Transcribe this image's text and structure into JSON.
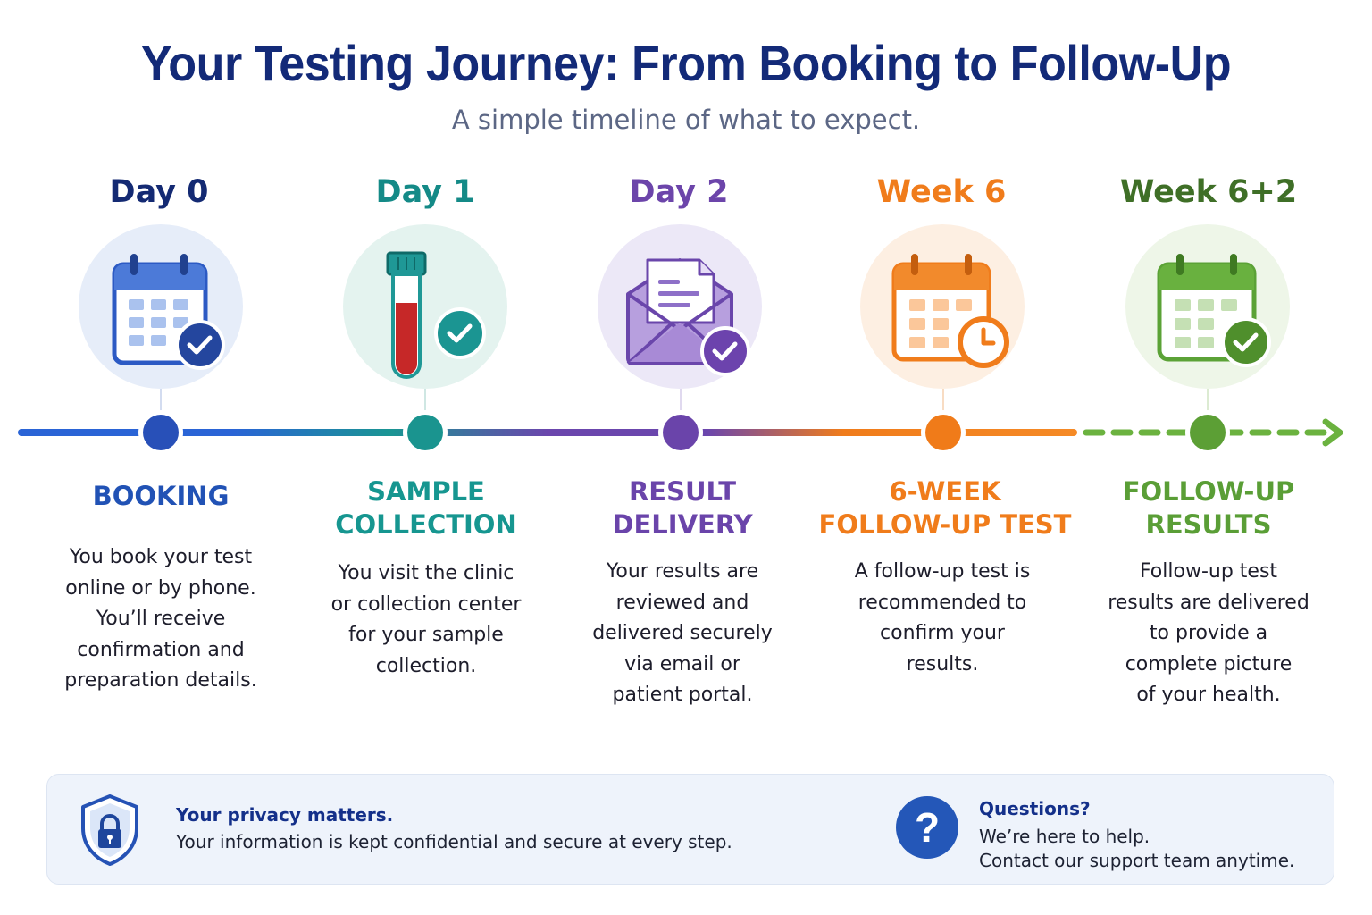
{
  "header": {
    "title": "Your Testing Journey: From Booking to Follow-Up",
    "subtitle": "A simple timeline of what to expect."
  },
  "colors": {
    "blue": "#2656bf",
    "teal": "#159294",
    "purple": "#6c45aa",
    "orange": "#f07c1b",
    "green": "#5a9e36"
  },
  "stages": [
    {
      "day": "Day 0",
      "name_lines": [
        "BOOKING"
      ],
      "desc_lines": [
        "You book your test",
        "online or by phone.",
        "You’ll receive",
        "confirmation and",
        "preparation details."
      ],
      "icon": "calendar-check-icon"
    },
    {
      "day": "Day 1",
      "name_lines": [
        "SAMPLE",
        "COLLECTION"
      ],
      "desc_lines": [
        "You visit the clinic",
        "or collection center",
        "for your sample",
        "collection."
      ],
      "icon": "test-tube-icon"
    },
    {
      "day": "Day 2",
      "name_lines": [
        "RESULT",
        "DELIVERY"
      ],
      "desc_lines": [
        "Your results are",
        "reviewed and",
        "delivered securely",
        "via email or",
        "patient portal."
      ],
      "icon": "envelope-icon"
    },
    {
      "day": "Week 6",
      "name_lines": [
        "6-WEEK",
        "FOLLOW-UP TEST"
      ],
      "desc_lines": [
        "A follow-up test is",
        "recommended to",
        "confirm your",
        "results."
      ],
      "icon": "calendar-clock-icon"
    },
    {
      "day": "Week 6+2",
      "name_lines": [
        "FOLLOW-UP",
        "RESULTS"
      ],
      "desc_lines": [
        "Follow-up test",
        "results are delivered",
        "to provide a",
        "complete picture",
        "of your health."
      ],
      "icon": "calendar-check-icon"
    }
  ],
  "footer": {
    "privacy": {
      "title": "Your privacy matters.",
      "text": "Your information is kept confidential and secure at every step.",
      "icon": "shield-lock-icon"
    },
    "questions": {
      "title": "Questions?",
      "line1": "We’re here to help.",
      "line2": "Contact our support team anytime.",
      "icon": "question-icon"
    }
  }
}
